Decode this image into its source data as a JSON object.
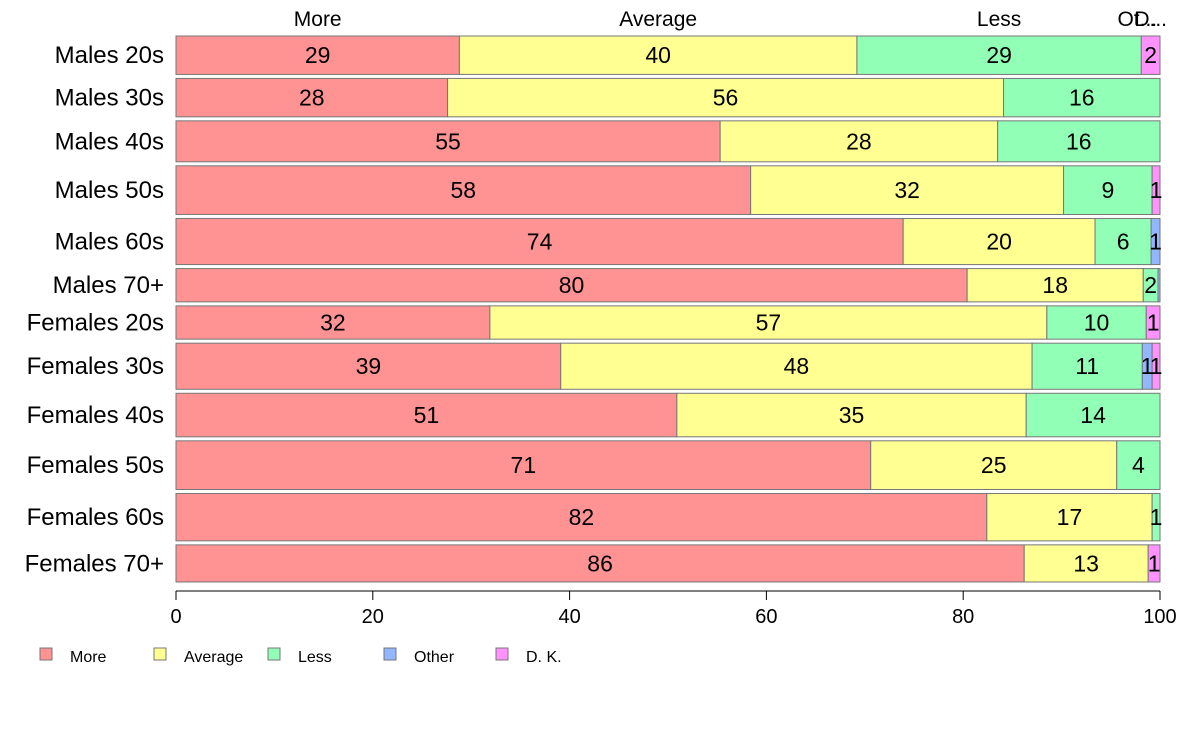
{
  "chart_data": {
    "type": "bar",
    "orientation": "horizontal",
    "stacked": true,
    "title": "",
    "xlabel": "",
    "ylabel": "",
    "xlim": [
      0,
      100
    ],
    "x_ticks": [
      0,
      20,
      40,
      60,
      80,
      100
    ],
    "grid": false,
    "legend_position": "bottom-left",
    "categories": [
      "Males 20s",
      "Males 30s",
      "Males 40s",
      "Males 50s",
      "Males 60s",
      "Males 70+",
      "Females 20s",
      "Females 30s",
      "Females 40s",
      "Females 50s",
      "Females 60s",
      "Females 70+"
    ],
    "row_shares": [
      3.0,
      3.0,
      3.2,
      3.8,
      3.6,
      2.6,
      2.6,
      3.6,
      3.4,
      3.8,
      3.7,
      2.9
    ],
    "top_labels": [
      "More",
      "Average",
      "Less",
      "Ot...",
      "D..."
    ],
    "series": [
      {
        "name": "More",
        "color": "#FF9292",
        "values": [
          28.8,
          27.6,
          55.3,
          58.4,
          73.9,
          80.4,
          31.9,
          39.1,
          50.9,
          70.6,
          82.4,
          86.2
        ]
      },
      {
        "name": "Average",
        "color": "#FFFF92",
        "values": [
          40.4,
          56.5,
          28.2,
          31.8,
          19.5,
          17.9,
          56.6,
          47.9,
          35.5,
          25.0,
          16.8,
          12.6
        ]
      },
      {
        "name": "Less",
        "color": "#92FFB6",
        "values": [
          28.9,
          15.9,
          16.5,
          9.0,
          5.7,
          1.5,
          10.1,
          11.2,
          13.6,
          4.4,
          0.8,
          0.0
        ]
      },
      {
        "name": "Other",
        "color": "#92B6FF",
        "values": [
          0.0,
          0.0,
          0.0,
          0.0,
          0.9,
          0.2,
          0.0,
          1.0,
          0.0,
          0.0,
          0.0,
          0.0
        ]
      },
      {
        "name": "D. K.",
        "color": "#FF92FF",
        "values": [
          1.9,
          0.0,
          0.0,
          0.8,
          0.0,
          0.0,
          1.4,
          0.8,
          0.0,
          0.0,
          0.0,
          1.2
        ]
      }
    ],
    "value_labels": [
      [
        "29",
        "40",
        "29",
        "",
        "2"
      ],
      [
        "28",
        "56",
        "16",
        "",
        ""
      ],
      [
        "55",
        "28",
        "16",
        "",
        ""
      ],
      [
        "58",
        "32",
        "9",
        "",
        "1"
      ],
      [
        "74",
        "20",
        "6",
        "1",
        ""
      ],
      [
        "80",
        "18",
        "2",
        "",
        ""
      ],
      [
        "32",
        "57",
        "10",
        "",
        "1"
      ],
      [
        "39",
        "48",
        "11",
        "1",
        "1"
      ],
      [
        "51",
        "35",
        "14",
        "",
        ""
      ],
      [
        "71",
        "25",
        "4",
        "",
        ""
      ],
      [
        "82",
        "17",
        "1",
        "",
        ""
      ],
      [
        "86",
        "13",
        "",
        "",
        "1"
      ]
    ]
  }
}
